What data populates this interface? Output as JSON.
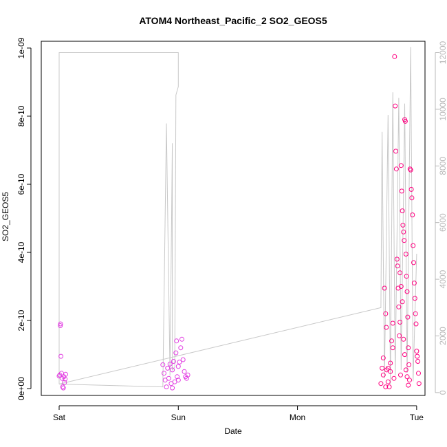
{
  "chart_data": {
    "type": "scatter",
    "title": "ATOM4 Northeast_Pacific_2 SO2_GEOS5",
    "xlabel": "Date",
    "ylabel": "SO2_GEOS5",
    "x_ticks": [
      "Sat",
      "Sun",
      "Mon",
      "Tue"
    ],
    "x_unit": "days since Sat 00:00",
    "xlim": [
      -0.15,
      3.07
    ],
    "ylim": [
      -2e-11,
      1.02e-09
    ],
    "y_ticks": [
      0,
      2e-10,
      4e-10,
      6e-10,
      8e-10,
      1e-09
    ],
    "y_tick_labels": [
      "0e+00",
      "2e-10",
      "4e-10",
      "6e-10",
      "8e-10",
      "1e-09"
    ],
    "y2lim": [
      -100,
      12400
    ],
    "y2_ticks": [
      0,
      2000,
      4000,
      6000,
      8000,
      10000,
      12000
    ],
    "y2_tick_labels": [
      "0",
      "2000",
      "4000",
      "6000",
      "8000",
      "10000",
      "12000"
    ],
    "point_color": "#ff0080",
    "point_color_alt": "#e23ee2",
    "line_color": "#c8c8c8",
    "series": [
      {
        "values": [
          [
            0.0,
            3.7e-11
          ],
          [
            0.005,
            4e-11
          ],
          [
            0.01,
            1.85e-10
          ],
          [
            0.012,
            1.9e-10
          ],
          [
            0.015,
            9.5e-11
          ],
          [
            0.02,
            4.5e-11
          ],
          [
            0.025,
            3e-11
          ],
          [
            0.03,
            5e-12
          ],
          [
            0.035,
            2e-12
          ],
          [
            0.04,
            3.5e-11
          ],
          [
            0.045,
            1.8e-11
          ],
          [
            0.05,
            2.8e-11
          ],
          [
            0.055,
            4.2e-11
          ],
          [
            0.87,
            7e-11
          ],
          [
            0.88,
            4.5e-11
          ],
          [
            0.89,
            2.5e-11
          ],
          [
            0.9,
            5e-12
          ],
          [
            0.91,
            6e-11
          ],
          [
            0.92,
            3e-11
          ],
          [
            0.93,
            7.2e-11
          ],
          [
            0.94,
            1.5e-11
          ],
          [
            0.95,
            5.5e-11
          ],
          [
            0.96,
            8e-11
          ],
          [
            0.97,
            2e-11
          ],
          [
            0.98,
            1.05e-10
          ],
          [
            0.985,
            1.4e-10
          ],
          [
            0.99,
            3.5e-11
          ],
          [
            1.0,
            6.5e-11
          ],
          [
            1.01,
            7.8e-11
          ],
          [
            1.02,
            1.2e-10
          ],
          [
            1.03,
            1.45e-10
          ],
          [
            1.04,
            8.5e-11
          ],
          [
            1.05,
            5e-11
          ],
          [
            1.06,
            3.5e-11
          ],
          [
            1.07,
            3e-11
          ],
          [
            1.08,
            4e-11
          ],
          [
            0.95,
            2e-12
          ],
          [
            1.0,
            2.5e-11
          ],
          [
            2.7,
            1.5e-11
          ],
          [
            2.71,
            6e-11
          ],
          [
            2.72,
            9e-11
          ],
          [
            2.73,
            2.95e-10
          ],
          [
            2.74,
            2.2e-10
          ],
          [
            2.745,
            1.8e-10
          ],
          [
            2.75,
            5.5e-11
          ],
          [
            2.76,
            2e-11
          ],
          [
            2.77,
            5e-12
          ],
          [
            2.78,
            7.5e-11
          ],
          [
            2.79,
            1.4e-10
          ],
          [
            2.8,
            1.92e-10
          ],
          [
            2.81,
            3e-11
          ],
          [
            2.815,
            9.75e-10
          ],
          [
            2.82,
            8.3e-10
          ],
          [
            2.825,
            6.97e-10
          ],
          [
            2.83,
            6.45e-10
          ],
          [
            2.835,
            3.8e-10
          ],
          [
            2.84,
            3.6e-10
          ],
          [
            2.845,
            2.95e-10
          ],
          [
            2.85,
            2.4e-10
          ],
          [
            2.855,
            1.55e-10
          ],
          [
            2.86,
            1.95e-10
          ],
          [
            2.865,
            4e-11
          ],
          [
            2.87,
            6.55e-10
          ],
          [
            2.875,
            5.8e-10
          ],
          [
            2.88,
            5.22e-10
          ],
          [
            2.885,
            4.8e-10
          ],
          [
            2.89,
            4.6e-10
          ],
          [
            2.895,
            4.35e-10
          ],
          [
            2.9,
            7.9e-10
          ],
          [
            2.905,
            7.85e-10
          ],
          [
            2.91,
            3.95e-10
          ],
          [
            2.915,
            3.3e-10
          ],
          [
            2.92,
            2.85e-10
          ],
          [
            2.925,
            2.1e-10
          ],
          [
            2.93,
            1.2e-10
          ],
          [
            2.935,
            7e-11
          ],
          [
            2.94,
            2.5e-11
          ],
          [
            2.945,
            6.45e-10
          ],
          [
            2.95,
            6.42e-10
          ],
          [
            2.955,
            5.85e-10
          ],
          [
            2.96,
            5.6e-10
          ],
          [
            2.965,
            5.1e-10
          ],
          [
            2.97,
            4.2e-10
          ],
          [
            2.975,
            3.7e-10
          ],
          [
            2.98,
            3.1e-10
          ],
          [
            2.985,
            2.65e-10
          ],
          [
            2.99,
            2.2e-10
          ],
          [
            2.995,
            1.9e-10
          ],
          [
            3.0,
            1.1e-10
          ],
          [
            3.005,
            9.5e-11
          ],
          [
            3.01,
            8e-11
          ],
          [
            3.015,
            4.5e-11
          ],
          [
            3.02,
            1.5e-11
          ],
          [
            2.86,
            3.4e-10
          ],
          [
            2.87,
            3e-10
          ],
          [
            2.88,
            2.55e-10
          ],
          [
            2.89,
            1.45e-10
          ],
          [
            2.9,
            1e-10
          ],
          [
            2.91,
            5.5e-11
          ],
          [
            2.92,
            3.5e-11
          ],
          [
            2.93,
            1e-11
          ],
          [
            2.8,
            1.2e-10
          ],
          [
            2.78,
            5e-11
          ],
          [
            2.76,
            6e-11
          ],
          [
            2.74,
            5e-12
          ],
          [
            2.72,
            4e-11
          ]
        ]
      }
    ],
    "altitude_line": [
      [
        0.0,
        300
      ],
      [
        0.0,
        12000
      ],
      [
        1.0,
        12000
      ],
      [
        1.0,
        10800
      ],
      [
        0.98,
        10500
      ],
      [
        0.97,
        900
      ],
      [
        0.95,
        800
      ],
      [
        0.95,
        8800
      ],
      [
        0.93,
        600
      ],
      [
        0.9,
        9500
      ],
      [
        0.87,
        200
      ],
      [
        0.0,
        300
      ],
      [
        2.7,
        3000
      ],
      [
        2.71,
        9200
      ],
      [
        2.73,
        500
      ],
      [
        2.76,
        9800
      ],
      [
        2.78,
        300
      ],
      [
        2.8,
        10600
      ],
      [
        2.82,
        600
      ],
      [
        2.85,
        10400
      ],
      [
        2.87,
        800
      ],
      [
        2.9,
        10200
      ],
      [
        2.92,
        700
      ],
      [
        2.95,
        12200
      ],
      [
        2.97,
        400
      ],
      [
        3.0,
        4900
      ]
    ]
  }
}
